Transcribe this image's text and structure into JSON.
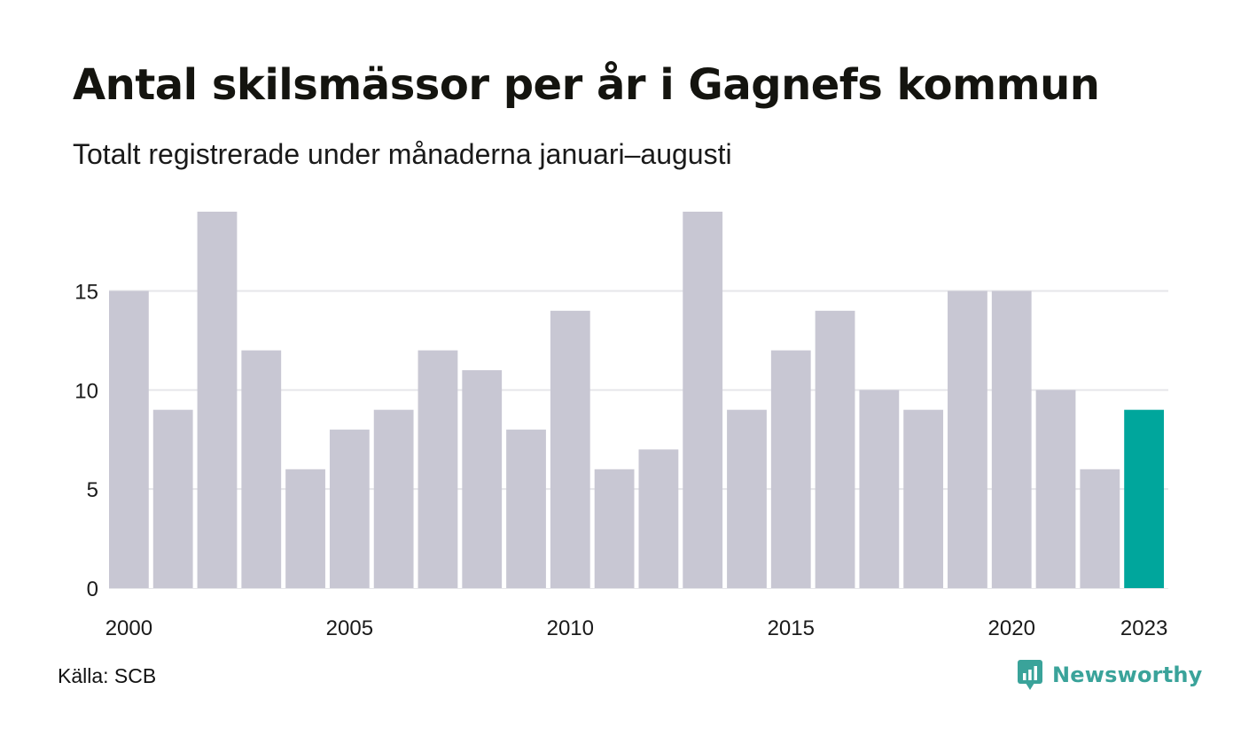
{
  "chart_data": {
    "type": "bar",
    "title": "Antal skilsmässor per år i Gagnefs kommun",
    "subtitle": "Totalt registrerade under månaderna januari–augusti",
    "x": [
      2000,
      2001,
      2002,
      2003,
      2004,
      2005,
      2006,
      2007,
      2008,
      2009,
      2010,
      2011,
      2012,
      2013,
      2014,
      2015,
      2016,
      2017,
      2018,
      2019,
      2020,
      2021,
      2022,
      2023
    ],
    "values": [
      15,
      9,
      19,
      12,
      6,
      8,
      9,
      12,
      11,
      8,
      14,
      6,
      7,
      19,
      9,
      12,
      14,
      10,
      9,
      15,
      15,
      10,
      6,
      9
    ],
    "x_tick_labels": [
      "2000",
      "2005",
      "2010",
      "2015",
      "2020",
      "2023"
    ],
    "y_ticks": [
      0,
      5,
      10,
      15
    ],
    "ylim": [
      0,
      19
    ],
    "grid": true,
    "legend": "none",
    "highlight_index": 23,
    "colors": {
      "bar": "#c8c7d3",
      "highlight": "#00a69c",
      "grid": "#e6e6ea",
      "axis_text": "#1a1a1a"
    }
  },
  "footer": {
    "source": "Källa: SCB",
    "brand": "Newsworthy",
    "brand_icon": "bar-chart-speech-bubble-icon",
    "brand_color": "#3aa39a"
  }
}
